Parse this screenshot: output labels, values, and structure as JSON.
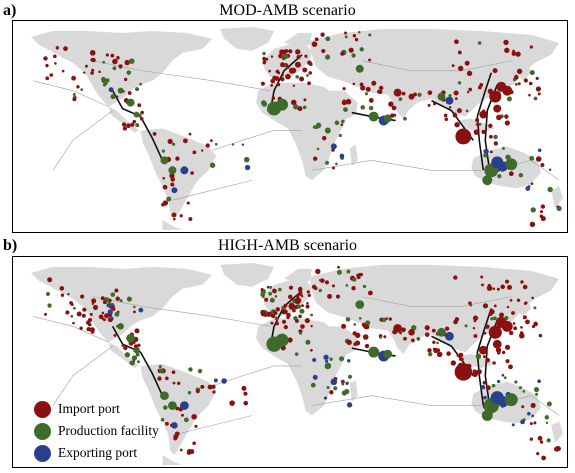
{
  "panels": [
    {
      "label": "a)",
      "title": "MOD-AMB scenario"
    },
    {
      "label": "b)",
      "title": "HIGH-AMB scenario"
    }
  ],
  "legend": [
    {
      "label": "Import port",
      "color": "#8b1010"
    },
    {
      "label": "Production facility",
      "color": "#3f6b2a"
    },
    {
      "label": "Exporting port",
      "color": "#2b3f8f"
    }
  ],
  "colors": {
    "land": "#d9d9d9",
    "import": "#8b1010",
    "production": "#3f6b2a",
    "export": "#2b3f8f",
    "route_main": "#111111",
    "route_minor": "#a0a0a0"
  }
}
